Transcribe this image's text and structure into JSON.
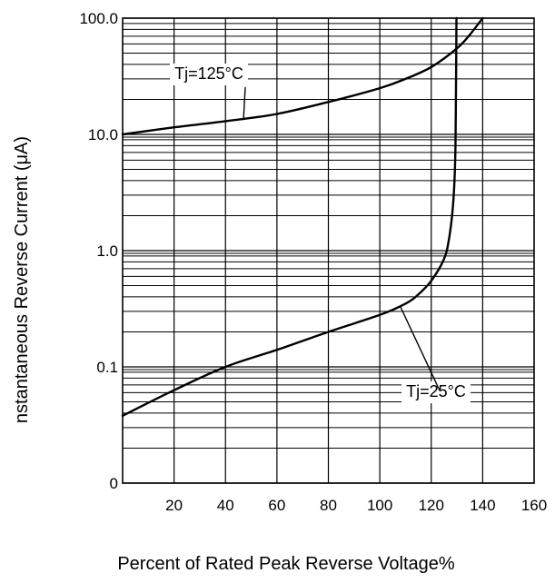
{
  "chart_data": {
    "type": "line",
    "title": "",
    "xlabel": "Percent of Rated Peak Reverse Voltage%",
    "ylabel": "nstantaneous Reverse Current (μA)",
    "x_scale": "linear",
    "y_scale": "log",
    "xlim": [
      0,
      160
    ],
    "ylim": [
      0.01,
      100
    ],
    "grid": true,
    "x_ticks": [
      20,
      40,
      60,
      80,
      100,
      120,
      140,
      160
    ],
    "x_tick_labels": [
      "20",
      "40",
      "60",
      "80",
      "100",
      "120",
      "140",
      "160"
    ],
    "y_ticks": [
      0.01,
      0.1,
      1,
      10,
      100
    ],
    "y_tick_labels": [
      "0",
      "0.1",
      "1.0",
      "10.0",
      "100.0"
    ],
    "series": [
      {
        "name": "Tj=125°C",
        "x": [
          0,
          20,
          40,
          60,
          80,
          100,
          110,
          120,
          130,
          135,
          140
        ],
        "y": [
          10,
          11.5,
          13,
          15,
          19,
          25,
          30,
          38,
          55,
          72,
          100
        ]
      },
      {
        "name": "Tj=25°C",
        "x": [
          0,
          20,
          40,
          60,
          80,
          100,
          110,
          115,
          120,
          125,
          127,
          128.5,
          129.3,
          129.6,
          129.8
        ],
        "y": [
          0.038,
          0.063,
          0.1,
          0.14,
          0.2,
          0.28,
          0.35,
          0.42,
          0.55,
          0.85,
          1.3,
          2.5,
          6,
          20,
          100
        ]
      }
    ],
    "annotations": [
      {
        "text": "Tj=125°C",
        "series": "Tj=125°C"
      },
      {
        "text": "Tj=25°C",
        "series": "Tj=25°C"
      }
    ]
  },
  "colors": {
    "line": "#000000",
    "grid": "#000000",
    "background": "#ffffff"
  }
}
